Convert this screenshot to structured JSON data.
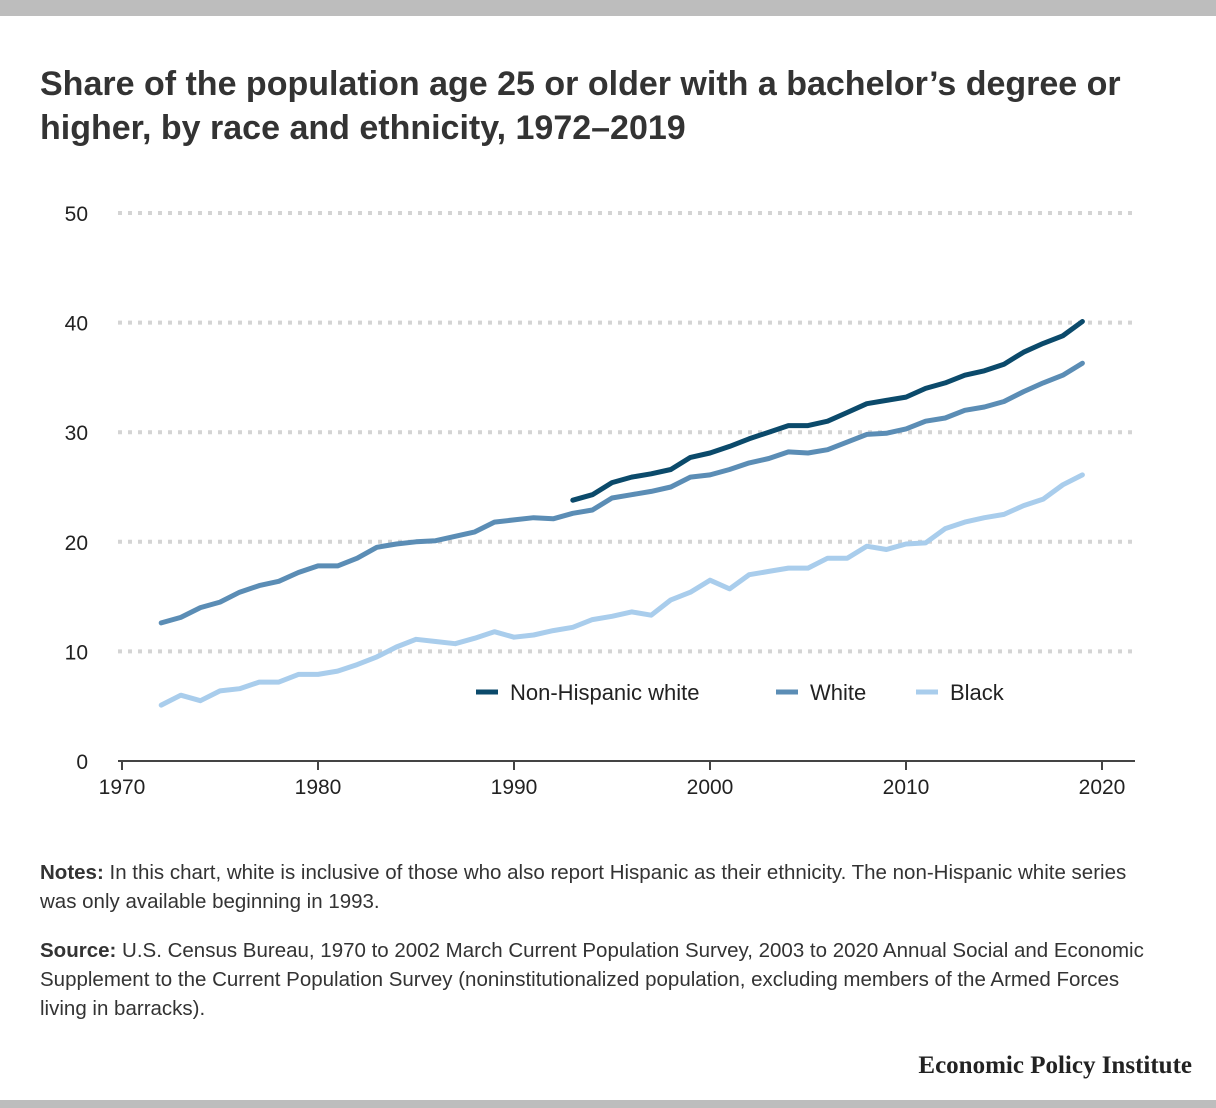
{
  "chart_data": {
    "type": "line",
    "title": "Share of the population age 25 or older with a bachelor’s degree or higher, by race and ethnicity, 1972–2019",
    "xlabel": "",
    "ylabel": "",
    "xlim": [
      1970,
      2021
    ],
    "ylim": [
      0,
      50
    ],
    "x_ticks": [
      1970,
      1980,
      1990,
      2000,
      2010,
      2020
    ],
    "y_ticks": [
      0,
      10,
      20,
      30,
      40,
      50
    ],
    "grid": "horizontal dotted",
    "legend_position": "inside, center-right below lines",
    "series": [
      {
        "name": "Non-Hispanic white",
        "color": "#0b4a6b",
        "points": [
          [
            1993,
            23.8
          ],
          [
            1994,
            24.3
          ],
          [
            1995,
            25.4
          ],
          [
            1996,
            25.9
          ],
          [
            1997,
            26.2
          ],
          [
            1998,
            26.6
          ],
          [
            1999,
            27.7
          ],
          [
            2000,
            28.1
          ],
          [
            2001,
            28.7
          ],
          [
            2002,
            29.4
          ],
          [
            2003,
            30.0
          ],
          [
            2004,
            30.6
          ],
          [
            2005,
            30.6
          ],
          [
            2006,
            31.0
          ],
          [
            2007,
            31.8
          ],
          [
            2008,
            32.6
          ],
          [
            2009,
            32.9
          ],
          [
            2010,
            33.2
          ],
          [
            2011,
            34.0
          ],
          [
            2012,
            34.5
          ],
          [
            2013,
            35.2
          ],
          [
            2014,
            35.6
          ],
          [
            2015,
            36.2
          ],
          [
            2016,
            37.3
          ],
          [
            2017,
            38.1
          ],
          [
            2018,
            38.8
          ],
          [
            2019,
            40.1
          ]
        ]
      },
      {
        "name": "White",
        "color": "#5b8db5",
        "points": [
          [
            1972,
            12.6
          ],
          [
            1973,
            13.1
          ],
          [
            1974,
            14.0
          ],
          [
            1975,
            14.5
          ],
          [
            1976,
            15.4
          ],
          [
            1977,
            16.0
          ],
          [
            1978,
            16.4
          ],
          [
            1979,
            17.2
          ],
          [
            1980,
            17.8
          ],
          [
            1981,
            17.8
          ],
          [
            1982,
            18.5
          ],
          [
            1983,
            19.5
          ],
          [
            1984,
            19.8
          ],
          [
            1985,
            20.0
          ],
          [
            1986,
            20.1
          ],
          [
            1987,
            20.5
          ],
          [
            1988,
            20.9
          ],
          [
            1989,
            21.8
          ],
          [
            1990,
            22.0
          ],
          [
            1991,
            22.2
          ],
          [
            1992,
            22.1
          ],
          [
            1993,
            22.6
          ],
          [
            1994,
            22.9
          ],
          [
            1995,
            24.0
          ],
          [
            1996,
            24.3
          ],
          [
            1997,
            24.6
          ],
          [
            1998,
            25.0
          ],
          [
            1999,
            25.9
          ],
          [
            2000,
            26.1
          ],
          [
            2001,
            26.6
          ],
          [
            2002,
            27.2
          ],
          [
            2003,
            27.6
          ],
          [
            2004,
            28.2
          ],
          [
            2005,
            28.1
          ],
          [
            2006,
            28.4
          ],
          [
            2007,
            29.1
          ],
          [
            2008,
            29.8
          ],
          [
            2009,
            29.9
          ],
          [
            2010,
            30.3
          ],
          [
            2011,
            31.0
          ],
          [
            2012,
            31.3
          ],
          [
            2013,
            32.0
          ],
          [
            2014,
            32.3
          ],
          [
            2015,
            32.8
          ],
          [
            2016,
            33.7
          ],
          [
            2017,
            34.5
          ],
          [
            2018,
            35.2
          ],
          [
            2019,
            36.3
          ]
        ]
      },
      {
        "name": "Black",
        "color": "#a9cdec",
        "points": [
          [
            1972,
            5.1
          ],
          [
            1973,
            6.0
          ],
          [
            1974,
            5.5
          ],
          [
            1975,
            6.4
          ],
          [
            1976,
            6.6
          ],
          [
            1977,
            7.2
          ],
          [
            1978,
            7.2
          ],
          [
            1979,
            7.9
          ],
          [
            1980,
            7.9
          ],
          [
            1981,
            8.2
          ],
          [
            1982,
            8.8
          ],
          [
            1983,
            9.5
          ],
          [
            1984,
            10.4
          ],
          [
            1985,
            11.1
          ],
          [
            1986,
            10.9
          ],
          [
            1987,
            10.7
          ],
          [
            1988,
            11.2
          ],
          [
            1989,
            11.8
          ],
          [
            1990,
            11.3
          ],
          [
            1991,
            11.5
          ],
          [
            1992,
            11.9
          ],
          [
            1993,
            12.2
          ],
          [
            1994,
            12.9
          ],
          [
            1995,
            13.2
          ],
          [
            1996,
            13.6
          ],
          [
            1997,
            13.3
          ],
          [
            1998,
            14.7
          ],
          [
            1999,
            15.4
          ],
          [
            2000,
            16.5
          ],
          [
            2001,
            15.7
          ],
          [
            2002,
            17.0
          ],
          [
            2003,
            17.3
          ],
          [
            2004,
            17.6
          ],
          [
            2005,
            17.6
          ],
          [
            2006,
            18.5
          ],
          [
            2007,
            18.5
          ],
          [
            2008,
            19.6
          ],
          [
            2009,
            19.3
          ],
          [
            2010,
            19.8
          ],
          [
            2011,
            19.9
          ],
          [
            2012,
            21.2
          ],
          [
            2013,
            21.8
          ],
          [
            2014,
            22.2
          ],
          [
            2015,
            22.5
          ],
          [
            2016,
            23.3
          ],
          [
            2017,
            23.9
          ],
          [
            2018,
            25.2
          ],
          [
            2019,
            26.1
          ]
        ]
      }
    ]
  },
  "notes": {
    "label": "Notes:",
    "text": " In this chart, white is inclusive of those who also report Hispanic as their ethnicity. The non-Hispanic white series was only available beginning in 1993."
  },
  "source": {
    "label": "Source:",
    "text": " U.S. Census Bureau, 1970 to 2002 March Current Population Survey, 2003 to 2020 Annual Social and Economic Supplement to the Current Population Survey (noninstitutionalized population, excluding members of the Armed Forces living in barracks)."
  },
  "credit": "Economic Policy Institute"
}
